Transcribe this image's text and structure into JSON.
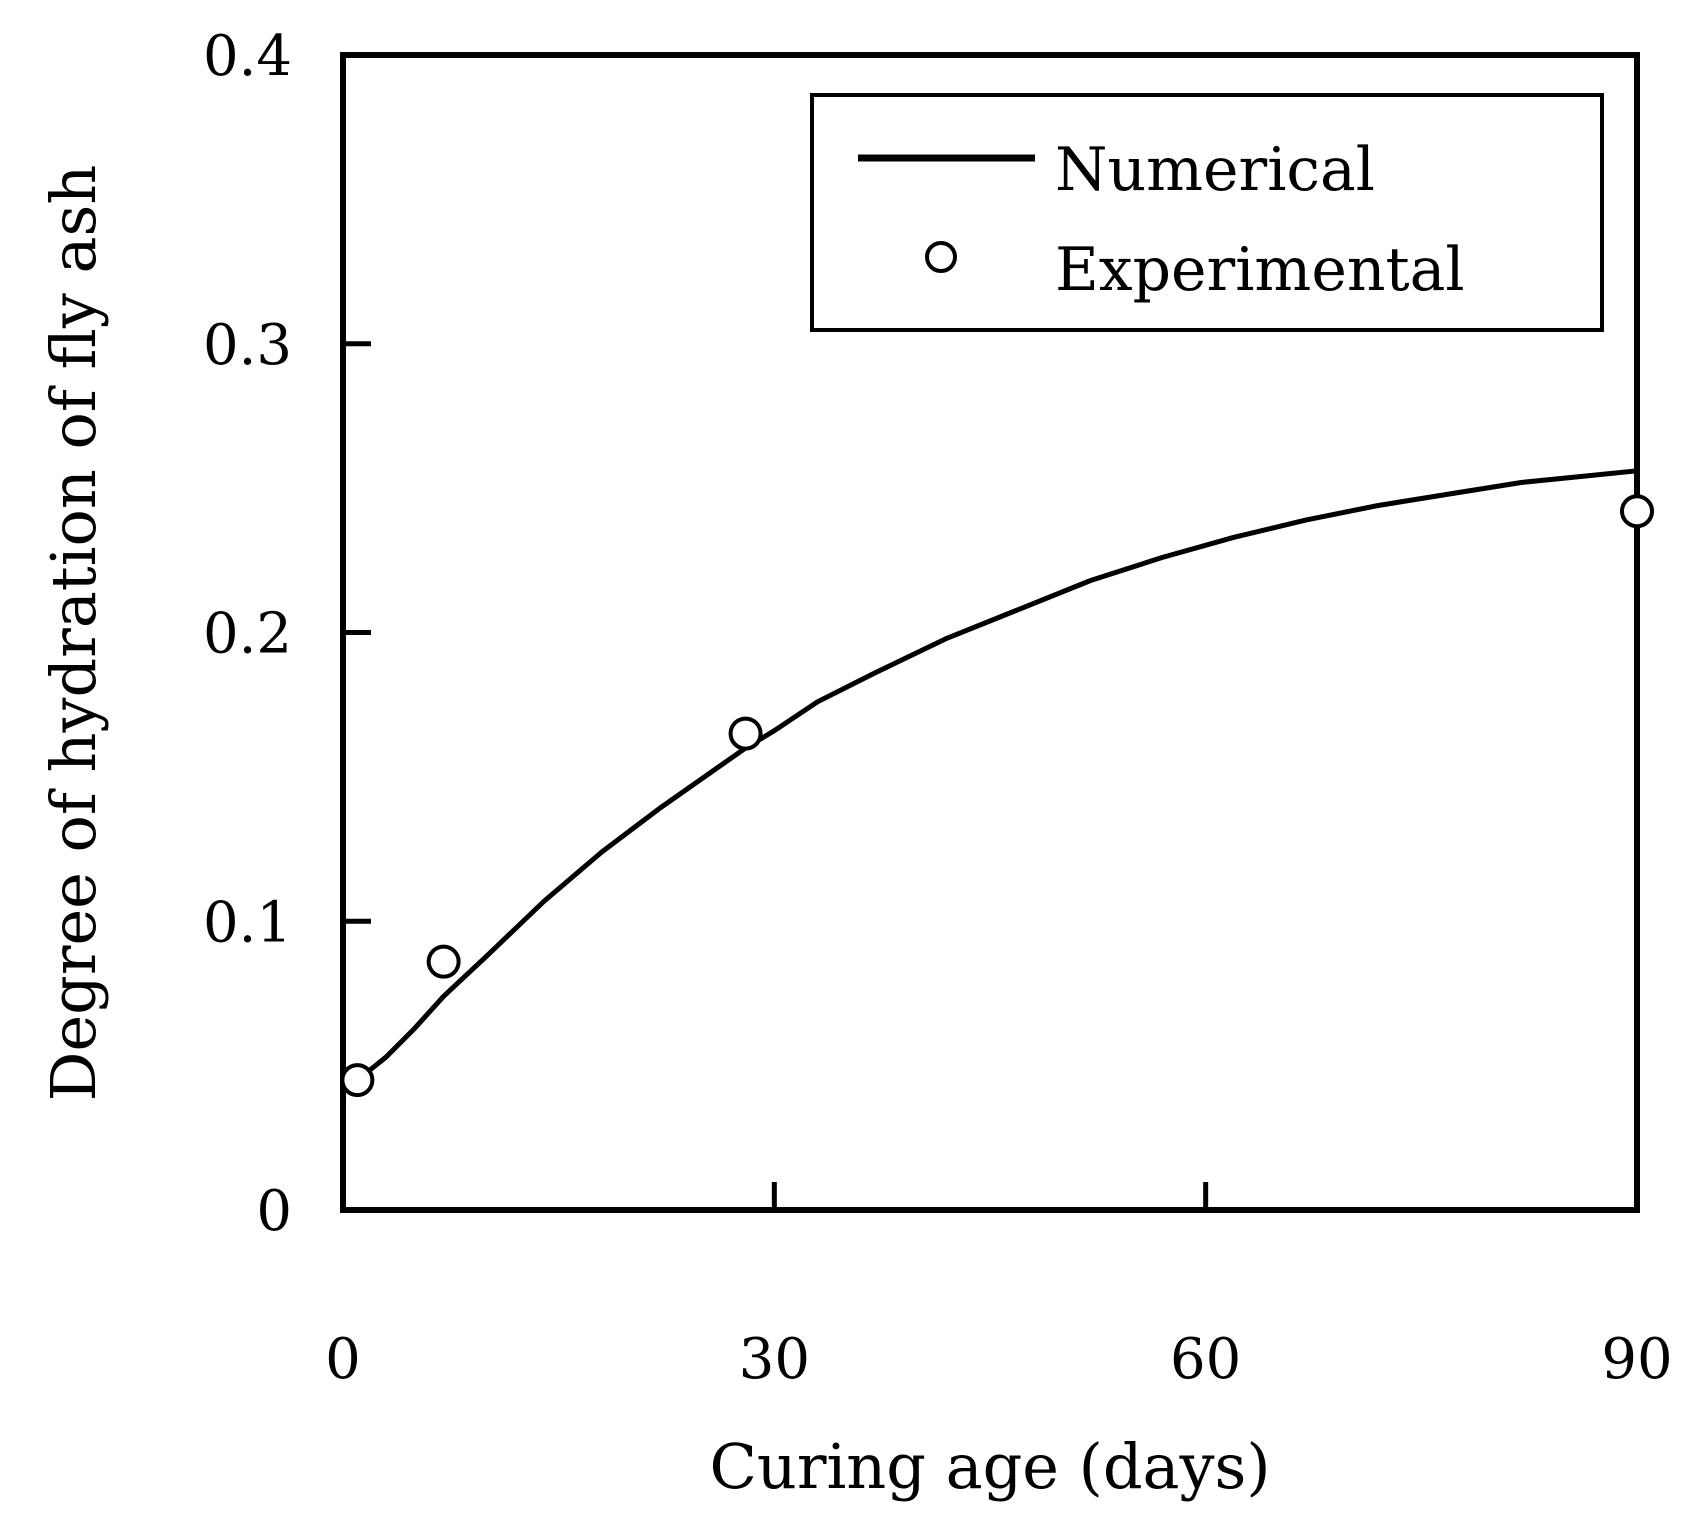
{
  "chart_data": {
    "type": "line",
    "title": "",
    "xlabel": "Curing age (days)",
    "ylabel": "Degree of hydration of fly ash",
    "xlim": [
      0,
      90
    ],
    "ylim": [
      0,
      0.4
    ],
    "xticks": [
      0,
      30,
      60,
      90
    ],
    "xtick_labels": [
      "0",
      "30",
      "60",
      "90"
    ],
    "yticks": [
      0,
      0.1,
      0.2,
      0.3,
      0.4
    ],
    "ytick_labels": [
      "0",
      "0.1",
      "0.2",
      "0.3",
      "0.4"
    ],
    "grid": false,
    "legend_position": "top-right",
    "series": [
      {
        "name": "Numerical",
        "style": "line",
        "color": "#000000",
        "x": [
          1,
          3,
          5,
          7,
          10,
          14,
          18,
          22,
          26,
          28,
          30,
          33,
          37,
          42,
          47,
          52,
          57,
          62,
          67,
          72,
          77,
          82,
          86,
          90
        ],
        "y": [
          0.045,
          0.053,
          0.063,
          0.074,
          0.088,
          0.107,
          0.124,
          0.139,
          0.153,
          0.16,
          0.166,
          0.176,
          0.186,
          0.198,
          0.208,
          0.218,
          0.226,
          0.233,
          0.239,
          0.244,
          0.248,
          0.252,
          0.254,
          0.256
        ]
      },
      {
        "name": "Experimental",
        "style": "markers",
        "marker": "open-circle",
        "color": "#000000",
        "x": [
          1,
          7,
          28,
          90
        ],
        "y": [
          0.045,
          0.086,
          0.165,
          0.242
        ]
      }
    ]
  }
}
